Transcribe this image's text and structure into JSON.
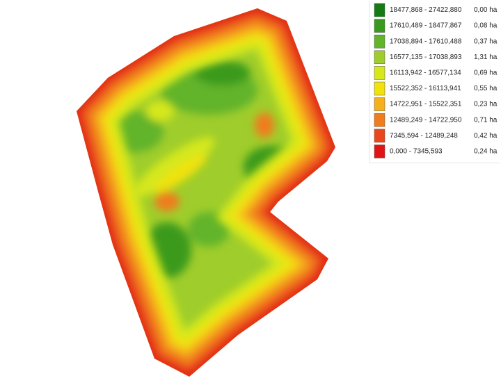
{
  "legend": {
    "items": [
      {
        "range": "18477,868 - 27422,880",
        "area": "0,00 ha",
        "color": "#137a14"
      },
      {
        "range": "17610,489 - 18477,867",
        "area": "0,08 ha",
        "color": "#3a9a1e"
      },
      {
        "range": "17038,894 - 17610,488",
        "area": "0,37 ha",
        "color": "#62b42a"
      },
      {
        "range": "16577,135 - 17038,893",
        "area": "1,31 ha",
        "color": "#9fcd2c"
      },
      {
        "range": "16113,942 - 16577,134",
        "area": "0,69 ha",
        "color": "#d6e81c"
      },
      {
        "range": "15522,352 - 16113,941",
        "area": "0,55 ha",
        "color": "#f2e20c"
      },
      {
        "range": "14722,951 - 15522,351",
        "area": "0,23 ha",
        "color": "#f5b01c"
      },
      {
        "range": "12489,249 - 14722,950",
        "area": "0,71 ha",
        "color": "#f17c1c"
      },
      {
        "range": "7345,594 - 12489,248",
        "area": "0,42 ha",
        "color": "#e9481a"
      },
      {
        "range": "0,000 - 7345,593",
        "area": "0,24 ha",
        "color": "#e01414"
      }
    ]
  }
}
